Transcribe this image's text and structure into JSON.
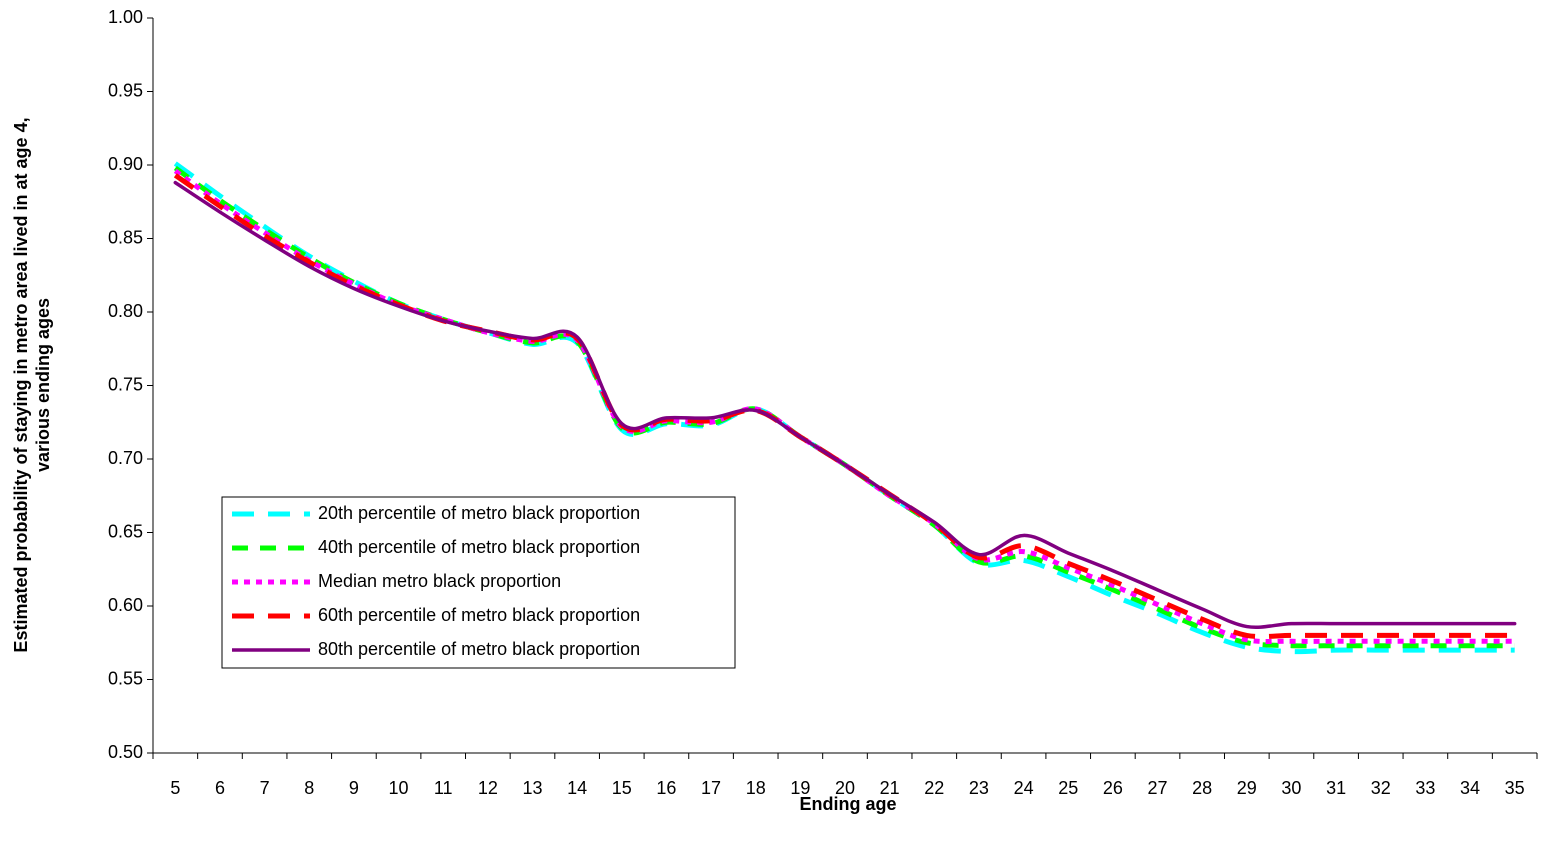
{
  "chart_data": {
    "type": "line",
    "y_label": [
      "Estimated probability of staying in metro area lived in at age 4,",
      "various ending ages"
    ],
    "x_label": "Ending age",
    "categories": [
      "5",
      "6",
      "7",
      "8",
      "9",
      "10",
      "11",
      "12",
      "13",
      "14",
      "15",
      "16",
      "17",
      "18",
      "19",
      "20",
      "21",
      "22",
      "23",
      "24",
      "25",
      "26",
      "27",
      "28",
      "29",
      "30",
      "31",
      "32",
      "33",
      "34",
      "35"
    ],
    "ylim": [
      0.5,
      1.0
    ],
    "yticks": [
      {
        "value": 0.5,
        "label": "0.50"
      },
      0.55,
      {
        "value": 0.6,
        "label": "0.60"
      },
      0.65,
      {
        "value": 0.7,
        "label": "0.70"
      },
      0.75,
      {
        "value": 0.8,
        "label": "0.80"
      },
      0.85,
      {
        "value": 0.9,
        "label": "0.90"
      },
      0.95,
      {
        "value": 1.0,
        "label": "1.00"
      }
    ],
    "grid": false,
    "smooth": true,
    "legend": "lower-left",
    "series": [
      {
        "name": "20th percentile of metro black proportion",
        "color": "#00ffff",
        "line_style": "long-dash",
        "values": [
          0.901,
          0.879,
          0.858,
          0.838,
          0.821,
          0.806,
          0.795,
          0.786,
          0.778,
          0.779,
          0.72,
          0.724,
          0.723,
          0.734,
          0.715,
          0.696,
          0.675,
          0.655,
          0.629,
          0.631,
          0.62,
          0.607,
          0.595,
          0.582,
          0.572,
          0.569,
          0.57,
          0.57,
          0.57,
          0.57,
          0.57
        ]
      },
      {
        "name": "40th percentile of metro black proportion",
        "color": "#00ff00",
        "line_style": "dash",
        "values": [
          0.898,
          0.876,
          0.856,
          0.837,
          0.82,
          0.806,
          0.795,
          0.786,
          0.779,
          0.78,
          0.721,
          0.725,
          0.724,
          0.734,
          0.715,
          0.696,
          0.675,
          0.655,
          0.63,
          0.634,
          0.623,
          0.611,
          0.598,
          0.585,
          0.575,
          0.573,
          0.573,
          0.573,
          0.573,
          0.573,
          0.573
        ]
      },
      {
        "name": "Median metro black proportion",
        "color": "#ff00ff",
        "line_style": "dot",
        "values": [
          0.896,
          0.874,
          0.854,
          0.835,
          0.819,
          0.805,
          0.795,
          0.786,
          0.78,
          0.781,
          0.722,
          0.726,
          0.725,
          0.734,
          0.715,
          0.696,
          0.675,
          0.656,
          0.632,
          0.637,
          0.626,
          0.614,
          0.601,
          0.588,
          0.577,
          0.576,
          0.576,
          0.576,
          0.576,
          0.576,
          0.576
        ]
      },
      {
        "name": "60th percentile of metro black proportion",
        "color": "#ff0000",
        "line_style": "long-dash",
        "values": [
          0.893,
          0.872,
          0.852,
          0.834,
          0.818,
          0.805,
          0.794,
          0.787,
          0.781,
          0.782,
          0.723,
          0.727,
          0.726,
          0.733,
          0.715,
          0.696,
          0.676,
          0.656,
          0.633,
          0.641,
          0.629,
          0.617,
          0.604,
          0.591,
          0.58,
          0.58,
          0.58,
          0.58,
          0.58,
          0.58,
          0.58
        ]
      },
      {
        "name": "80th percentile of metro black proportion",
        "color": "#800080",
        "line_style": "solid",
        "values": [
          0.888,
          0.868,
          0.849,
          0.831,
          0.816,
          0.804,
          0.794,
          0.787,
          0.782,
          0.783,
          0.724,
          0.728,
          0.728,
          0.733,
          0.715,
          0.696,
          0.676,
          0.657,
          0.635,
          0.648,
          0.636,
          0.624,
          0.611,
          0.598,
          0.586,
          0.588,
          0.588,
          0.588,
          0.588,
          0.588,
          0.588
        ]
      }
    ]
  }
}
